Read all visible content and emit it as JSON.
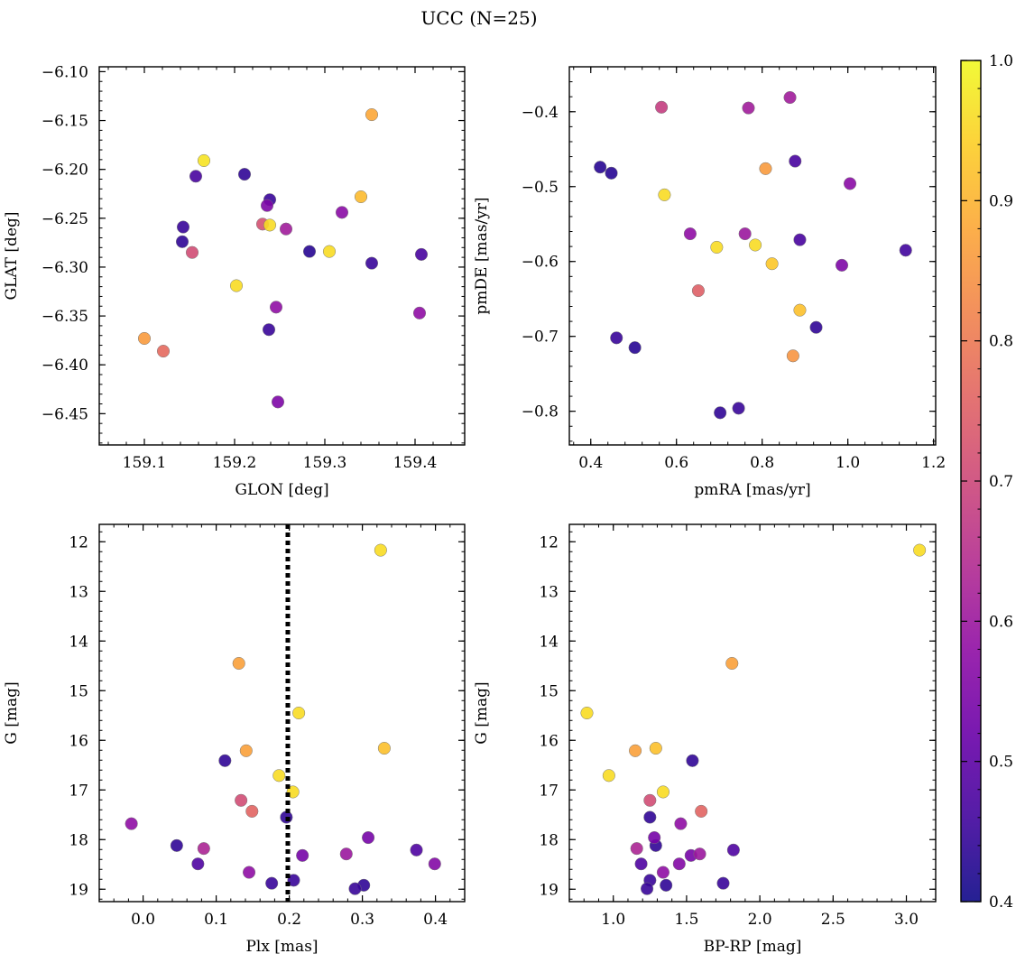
{
  "title": "UCC (N=25)",
  "colormap": [
    "#0d0887",
    "#41049d",
    "#6a00a8",
    "#8f0da4",
    "#b12a90",
    "#cc4778",
    "#e16462",
    "#f1834b",
    "#fca636",
    "#fccd25",
    "#f0f921"
  ],
  "colorbar": {
    "min": 0.4,
    "max": 1.0,
    "ticks": [
      "0.4",
      "0.5",
      "0.6",
      "0.7",
      "0.8",
      "0.9",
      "1.0"
    ]
  },
  "chart_data": [
    {
      "type": "scatter",
      "xlabel": "GLON [deg]",
      "ylabel": "GLAT [deg]",
      "xlim": [
        159.05,
        159.455
      ],
      "ylim": [
        -6.482,
        -6.095
      ],
      "xticks": [
        "159.1",
        "159.2",
        "159.3",
        "159.4"
      ],
      "yticks": [
        "-6.10",
        "-6.15",
        "-6.20",
        "-6.25",
        "-6.30",
        "-6.35",
        "-6.40",
        "-6.45"
      ],
      "x": [
        159.352,
        159.166,
        159.157,
        159.211,
        159.239,
        159.34,
        159.236,
        159.231,
        159.319,
        159.239,
        159.257,
        159.143,
        159.142,
        159.153,
        159.283,
        159.305,
        159.407,
        159.352,
        159.202,
        159.246,
        159.405,
        159.238,
        159.1,
        159.121,
        159.248
      ],
      "y": [
        -6.144,
        -6.191,
        -6.207,
        -6.205,
        -6.231,
        -6.228,
        -6.237,
        -6.256,
        -6.244,
        -6.257,
        -6.261,
        -6.259,
        -6.274,
        -6.285,
        -6.284,
        -6.284,
        -6.287,
        -6.296,
        -6.319,
        -6.341,
        -6.347,
        -6.364,
        -6.373,
        -6.386,
        -6.438
      ],
      "c": [
        0.88,
        0.97,
        0.47,
        0.44,
        0.45,
        0.91,
        0.55,
        0.72,
        0.57,
        0.96,
        0.61,
        0.45,
        0.44,
        0.71,
        0.43,
        0.96,
        0.47,
        0.45,
        0.96,
        0.58,
        0.58,
        0.45,
        0.86,
        0.77,
        0.55
      ]
    },
    {
      "type": "scatter",
      "xlabel": "pmRA [mas/yr]",
      "ylabel": "pmDE [mas/yr]",
      "xlim": [
        0.35,
        1.205
      ],
      "ylim": [
        -0.845,
        -0.34
      ],
      "xticks": [
        "0.4",
        "0.6",
        "0.8",
        "1.0",
        "1.2"
      ],
      "yticks": [
        "-0.4",
        "-0.5",
        "-0.6",
        "-0.7",
        "-0.8"
      ],
      "x": [
        0.865,
        0.565,
        0.768,
        0.422,
        0.448,
        0.877,
        0.808,
        1.005,
        0.572,
        0.632,
        0.76,
        0.888,
        0.694,
        0.784,
        1.135,
        0.823,
        0.986,
        0.651,
        0.888,
        0.46,
        0.926,
        0.503,
        0.872,
        0.745,
        0.702
      ],
      "y": [
        -0.381,
        -0.394,
        -0.395,
        -0.474,
        -0.482,
        -0.466,
        -0.476,
        -0.496,
        -0.511,
        -0.563,
        -0.563,
        -0.571,
        -0.581,
        -0.578,
        -0.585,
        -0.603,
        -0.605,
        -0.639,
        -0.665,
        -0.702,
        -0.688,
        -0.715,
        -0.726,
        -0.796,
        -0.802
      ],
      "c": [
        0.61,
        0.68,
        0.61,
        0.43,
        0.43,
        0.47,
        0.86,
        0.57,
        0.96,
        0.58,
        0.6,
        0.47,
        0.96,
        0.96,
        0.46,
        0.93,
        0.55,
        0.75,
        0.92,
        0.45,
        0.44,
        0.43,
        0.85,
        0.45,
        0.44
      ]
    },
    {
      "type": "scatter",
      "xlabel": "Plx [mas]",
      "ylabel": "G [mag]",
      "xlim": [
        -0.06,
        0.44
      ],
      "ylim": [
        19.25,
        11.65
      ],
      "xticks": [
        "0.0",
        "0.1",
        "0.2",
        "0.3",
        "0.4"
      ],
      "yticks": [
        "12",
        "13",
        "14",
        "15",
        "16",
        "17",
        "18",
        "19"
      ],
      "vline": 0.198,
      "x": [
        0.325,
        0.131,
        0.213,
        0.112,
        0.141,
        0.33,
        0.186,
        0.205,
        0.134,
        0.149,
        -0.016,
        0.196,
        0.046,
        0.308,
        0.083,
        0.218,
        0.374,
        0.278,
        0.075,
        0.399,
        0.145,
        0.176,
        0.206,
        0.302,
        0.29
      ],
      "y": [
        12.17,
        14.45,
        15.45,
        16.41,
        16.21,
        16.16,
        16.71,
        17.04,
        17.21,
        17.43,
        17.68,
        17.55,
        18.12,
        17.96,
        18.18,
        18.32,
        18.21,
        18.29,
        18.49,
        18.49,
        18.66,
        18.88,
        18.82,
        18.92,
        18.99
      ],
      "c": [
        0.96,
        0.87,
        0.96,
        0.44,
        0.87,
        0.92,
        0.96,
        0.96,
        0.71,
        0.76,
        0.58,
        0.44,
        0.44,
        0.54,
        0.63,
        0.54,
        0.48,
        0.6,
        0.48,
        0.56,
        0.58,
        0.45,
        0.45,
        0.44,
        0.45
      ]
    },
    {
      "type": "scatter",
      "xlabel": "BP-RP [mag]",
      "ylabel": "G [mag]",
      "xlim": [
        0.7,
        3.2
      ],
      "ylim": [
        19.25,
        11.65
      ],
      "xticks": [
        "1.0",
        "1.5",
        "2.0",
        "2.5",
        "3.0"
      ],
      "yticks": [
        "12",
        "13",
        "14",
        "15",
        "16",
        "17",
        "18",
        "19"
      ],
      "x": [
        3.09,
        1.81,
        0.82,
        1.54,
        1.15,
        1.29,
        0.97,
        1.34,
        1.25,
        1.6,
        1.46,
        1.25,
        1.29,
        1.28,
        1.16,
        1.53,
        1.82,
        1.59,
        1.19,
        1.45,
        1.34,
        1.75,
        1.25,
        1.36,
        1.23
      ],
      "y": [
        12.17,
        14.45,
        15.45,
        16.41,
        16.21,
        16.16,
        16.71,
        17.04,
        17.21,
        17.43,
        17.68,
        17.55,
        18.12,
        17.96,
        18.18,
        18.32,
        18.21,
        18.29,
        18.49,
        18.49,
        18.66,
        18.88,
        18.82,
        18.92,
        18.99
      ],
      "c": [
        0.96,
        0.87,
        0.96,
        0.44,
        0.87,
        0.92,
        0.96,
        0.96,
        0.71,
        0.76,
        0.58,
        0.44,
        0.44,
        0.54,
        0.63,
        0.54,
        0.48,
        0.6,
        0.48,
        0.56,
        0.58,
        0.45,
        0.45,
        0.44,
        0.45
      ]
    }
  ]
}
